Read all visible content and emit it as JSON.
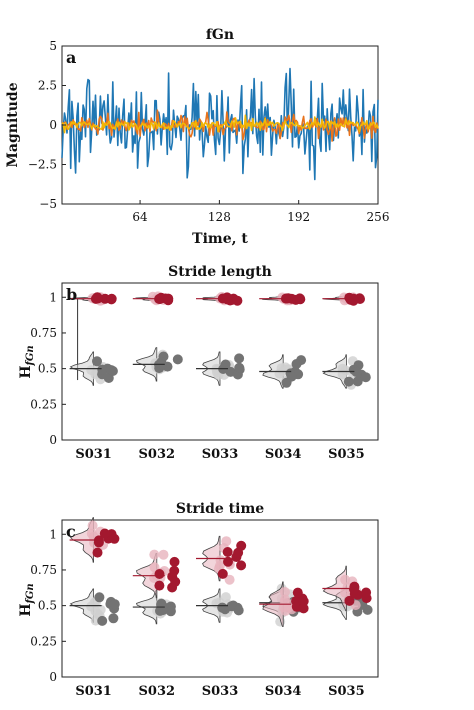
{
  "colors": {
    "series_blue": "#1f77b4",
    "series_orange": "#e8731c",
    "series_yellow": "#f2b705",
    "red": "#a3182f",
    "red_light": "#e7b3bd",
    "gray": "#737373",
    "gray_light": "#cfcfcf"
  },
  "chart_data": [
    {
      "id": "a",
      "type": "line",
      "panel_label": "a",
      "title": "fGn",
      "xlabel": "Time, t",
      "ylabel": "Magnitude",
      "xlim": [
        1,
        256
      ],
      "ylim": [
        -5,
        5
      ],
      "xticks": [
        64,
        128,
        192,
        256
      ],
      "yticks": [
        5,
        2.5,
        0,
        -2.5,
        -5
      ],
      "grid": false,
      "series": [
        {
          "color": "#1f77b4",
          "amplitude": 1.4,
          "n": 256
        },
        {
          "color": "#e8731c",
          "amplitude": 0.32,
          "n": 256
        },
        {
          "color": "#f2b705",
          "amplitude": 0.17,
          "n": 256
        }
      ]
    },
    {
      "id": "b",
      "type": "scatter",
      "panel_label": "b",
      "title": "Stride length",
      "ylabel": "H_fGn",
      "ylim": [
        0,
        1.1
      ],
      "yticks": [
        1,
        0.75,
        0.5,
        0.25,
        0
      ],
      "categories": [
        "S031",
        "S032",
        "S033",
        "S034",
        "S035"
      ],
      "groups": [
        {
          "color": "red",
          "centers": [
            0.99,
            0.99,
            0.99,
            0.99,
            0.99
          ],
          "spread": 0.008
        },
        {
          "color": "gray",
          "centers": [
            0.5,
            0.53,
            0.5,
            0.48,
            0.48
          ],
          "spread": 0.045
        }
      ]
    },
    {
      "id": "c",
      "type": "scatter",
      "panel_label": "c",
      "title": "Stride time",
      "ylabel": "H_fGn",
      "ylim": [
        0,
        1.1
      ],
      "yticks": [
        1,
        0.75,
        0.5,
        0.25,
        0
      ],
      "categories": [
        "S031",
        "S032",
        "S033",
        "S034",
        "S035"
      ],
      "groups": [
        {
          "color": "red",
          "centers": [
            0.96,
            0.71,
            0.83,
            0.51,
            0.62
          ],
          "spread": 0.06
        },
        {
          "color": "gray",
          "centers": [
            0.5,
            0.49,
            0.5,
            0.52,
            0.52
          ],
          "spread": 0.045
        }
      ]
    }
  ]
}
